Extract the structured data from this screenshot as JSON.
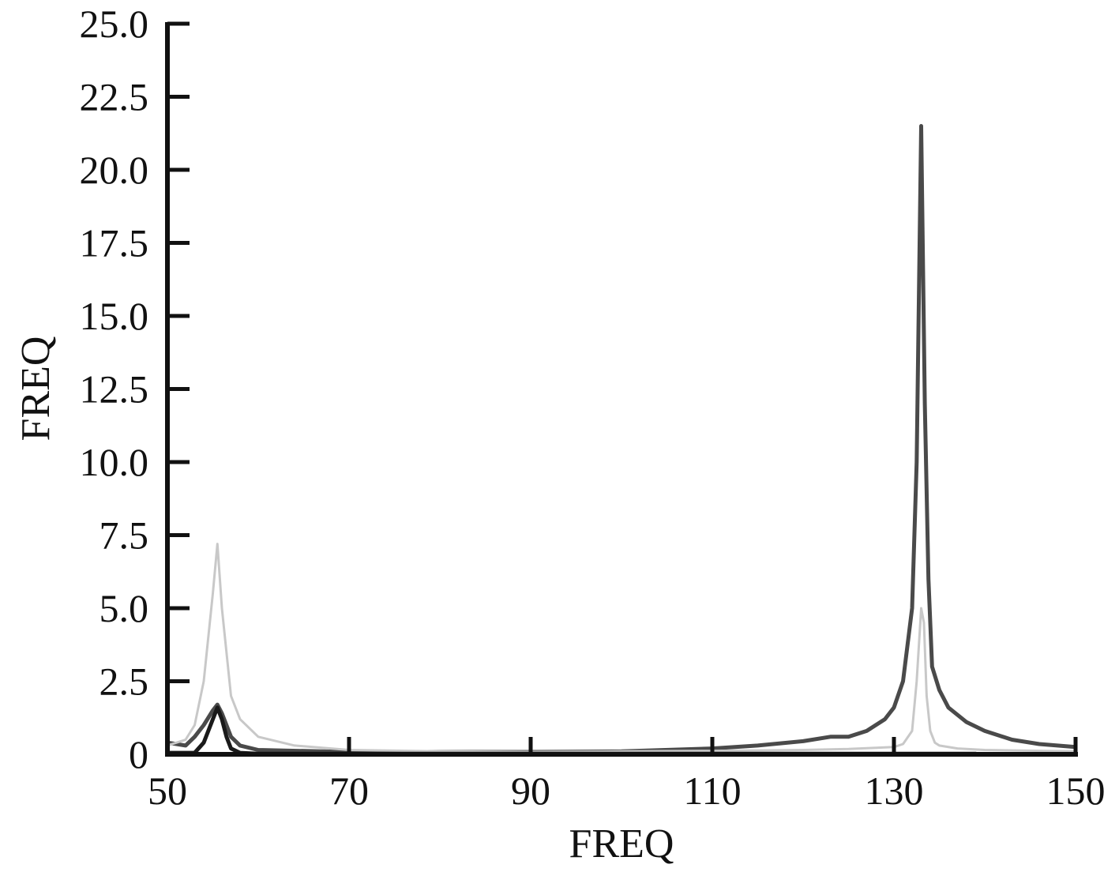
{
  "chart_data": {
    "type": "line",
    "title": "",
    "xlabel": "FREQ",
    "ylabel": "FREQ",
    "xlim": [
      50,
      150
    ],
    "ylim": [
      0,
      25
    ],
    "xticks": [
      50,
      70,
      90,
      110,
      130,
      150
    ],
    "yticks": [
      0,
      2.5,
      5.0,
      7.5,
      10.0,
      12.5,
      15.0,
      17.5,
      20.0,
      22.5,
      25.0
    ],
    "xtick_labels": [
      "50",
      "70",
      "90",
      "110",
      "130",
      "150"
    ],
    "ytick_labels": [
      "0",
      "2.5",
      "5.0",
      "7.5",
      "10.0",
      "12.5",
      "15.0",
      "17.5",
      "20.0",
      "22.5",
      "25.0"
    ],
    "grid": false,
    "legend": "none",
    "series": [
      {
        "color": "#4a4a4a",
        "x": [
          50,
          52,
          53,
          54,
          55,
          55.5,
          56,
          57,
          58,
          60,
          70,
          90,
          100,
          110,
          115,
          120,
          123,
          125,
          127,
          129,
          130,
          131,
          132,
          132.5,
          133,
          133.4,
          133.8,
          134.2,
          135,
          136,
          138,
          140,
          143,
          146,
          150
        ],
        "y": [
          0.4,
          0.3,
          0.6,
          1.0,
          1.5,
          1.7,
          1.4,
          0.6,
          0.3,
          0.15,
          0.08,
          0.08,
          0.1,
          0.2,
          0.3,
          0.45,
          0.6,
          0.6,
          0.8,
          1.2,
          1.6,
          2.5,
          5.0,
          10.0,
          21.5,
          12.0,
          6.0,
          3.0,
          2.2,
          1.6,
          1.1,
          0.8,
          0.5,
          0.35,
          0.25
        ]
      },
      {
        "color": "#c8c8c8",
        "x": [
          50,
          52,
          53,
          54,
          55,
          55.5,
          56,
          57,
          58,
          60,
          64,
          70,
          80,
          90,
          100,
          110,
          120,
          125,
          130,
          131,
          132,
          132.5,
          133,
          133.3,
          133.6,
          134,
          134.5,
          135,
          137,
          140,
          150
        ],
        "y": [
          0.3,
          0.5,
          1.0,
          2.5,
          5.5,
          7.2,
          5.0,
          2.0,
          1.2,
          0.6,
          0.3,
          0.15,
          0.1,
          0.08,
          0.1,
          0.12,
          0.15,
          0.18,
          0.25,
          0.35,
          0.8,
          2.5,
          5.0,
          4.5,
          2.0,
          0.8,
          0.4,
          0.3,
          0.2,
          0.15,
          0.1
        ]
      },
      {
        "color": "#1a1a1a",
        "x": [
          50,
          53,
          54,
          55,
          55.5,
          56,
          56.5,
          57,
          58,
          60,
          80,
          100,
          120,
          139
        ],
        "y": [
          0.05,
          0.05,
          0.4,
          1.2,
          1.6,
          1.2,
          0.6,
          0.2,
          0.05,
          0.02,
          0.02,
          0.02,
          0.02,
          0.02
        ]
      }
    ]
  }
}
